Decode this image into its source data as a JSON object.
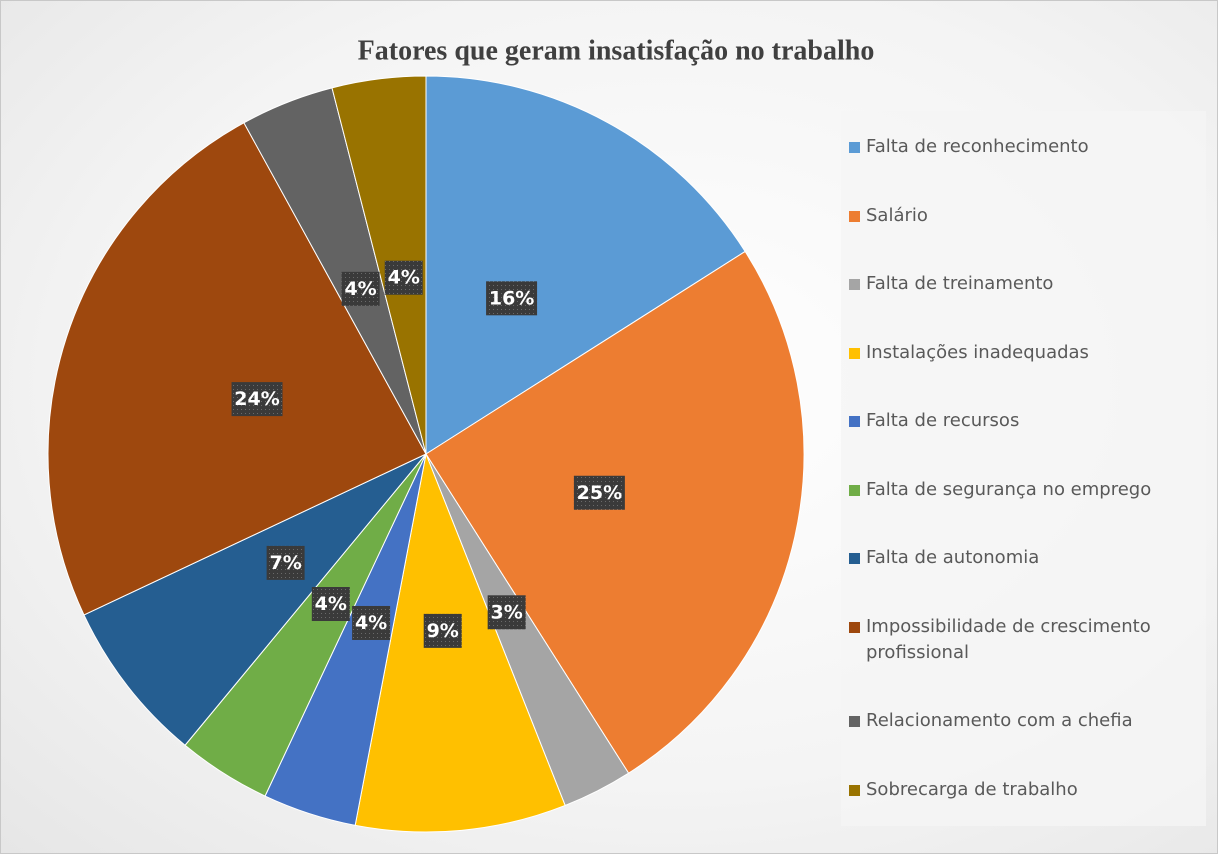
{
  "chart_data": {
    "type": "pie",
    "title": "Fatores que geram insatisfação no trabalho",
    "categories": [
      "Falta de reconhecimento",
      "Salário",
      "Falta de treinamento",
      "Instalações inadequadas",
      "Falta de recursos",
      "Falta de segurança no emprego",
      "Falta de autonomia",
      "Impossibilidade de crescimento profissional",
      "Relacionamento com a chefia",
      "Sobrecarga de trabalho"
    ],
    "values": [
      16,
      25,
      3,
      9,
      4,
      4,
      7,
      24,
      4,
      4
    ],
    "value_labels": [
      "16%",
      "25%",
      "3%",
      "9%",
      "4%",
      "4%",
      "7%",
      "24%",
      "4%",
      "4%"
    ],
    "colors": [
      "#5b9bd5",
      "#ed7d31",
      "#a5a5a5",
      "#ffc000",
      "#4472c4",
      "#70ad47",
      "#255e91",
      "#9e480e",
      "#636363",
      "#997300"
    ],
    "legend": "right"
  }
}
